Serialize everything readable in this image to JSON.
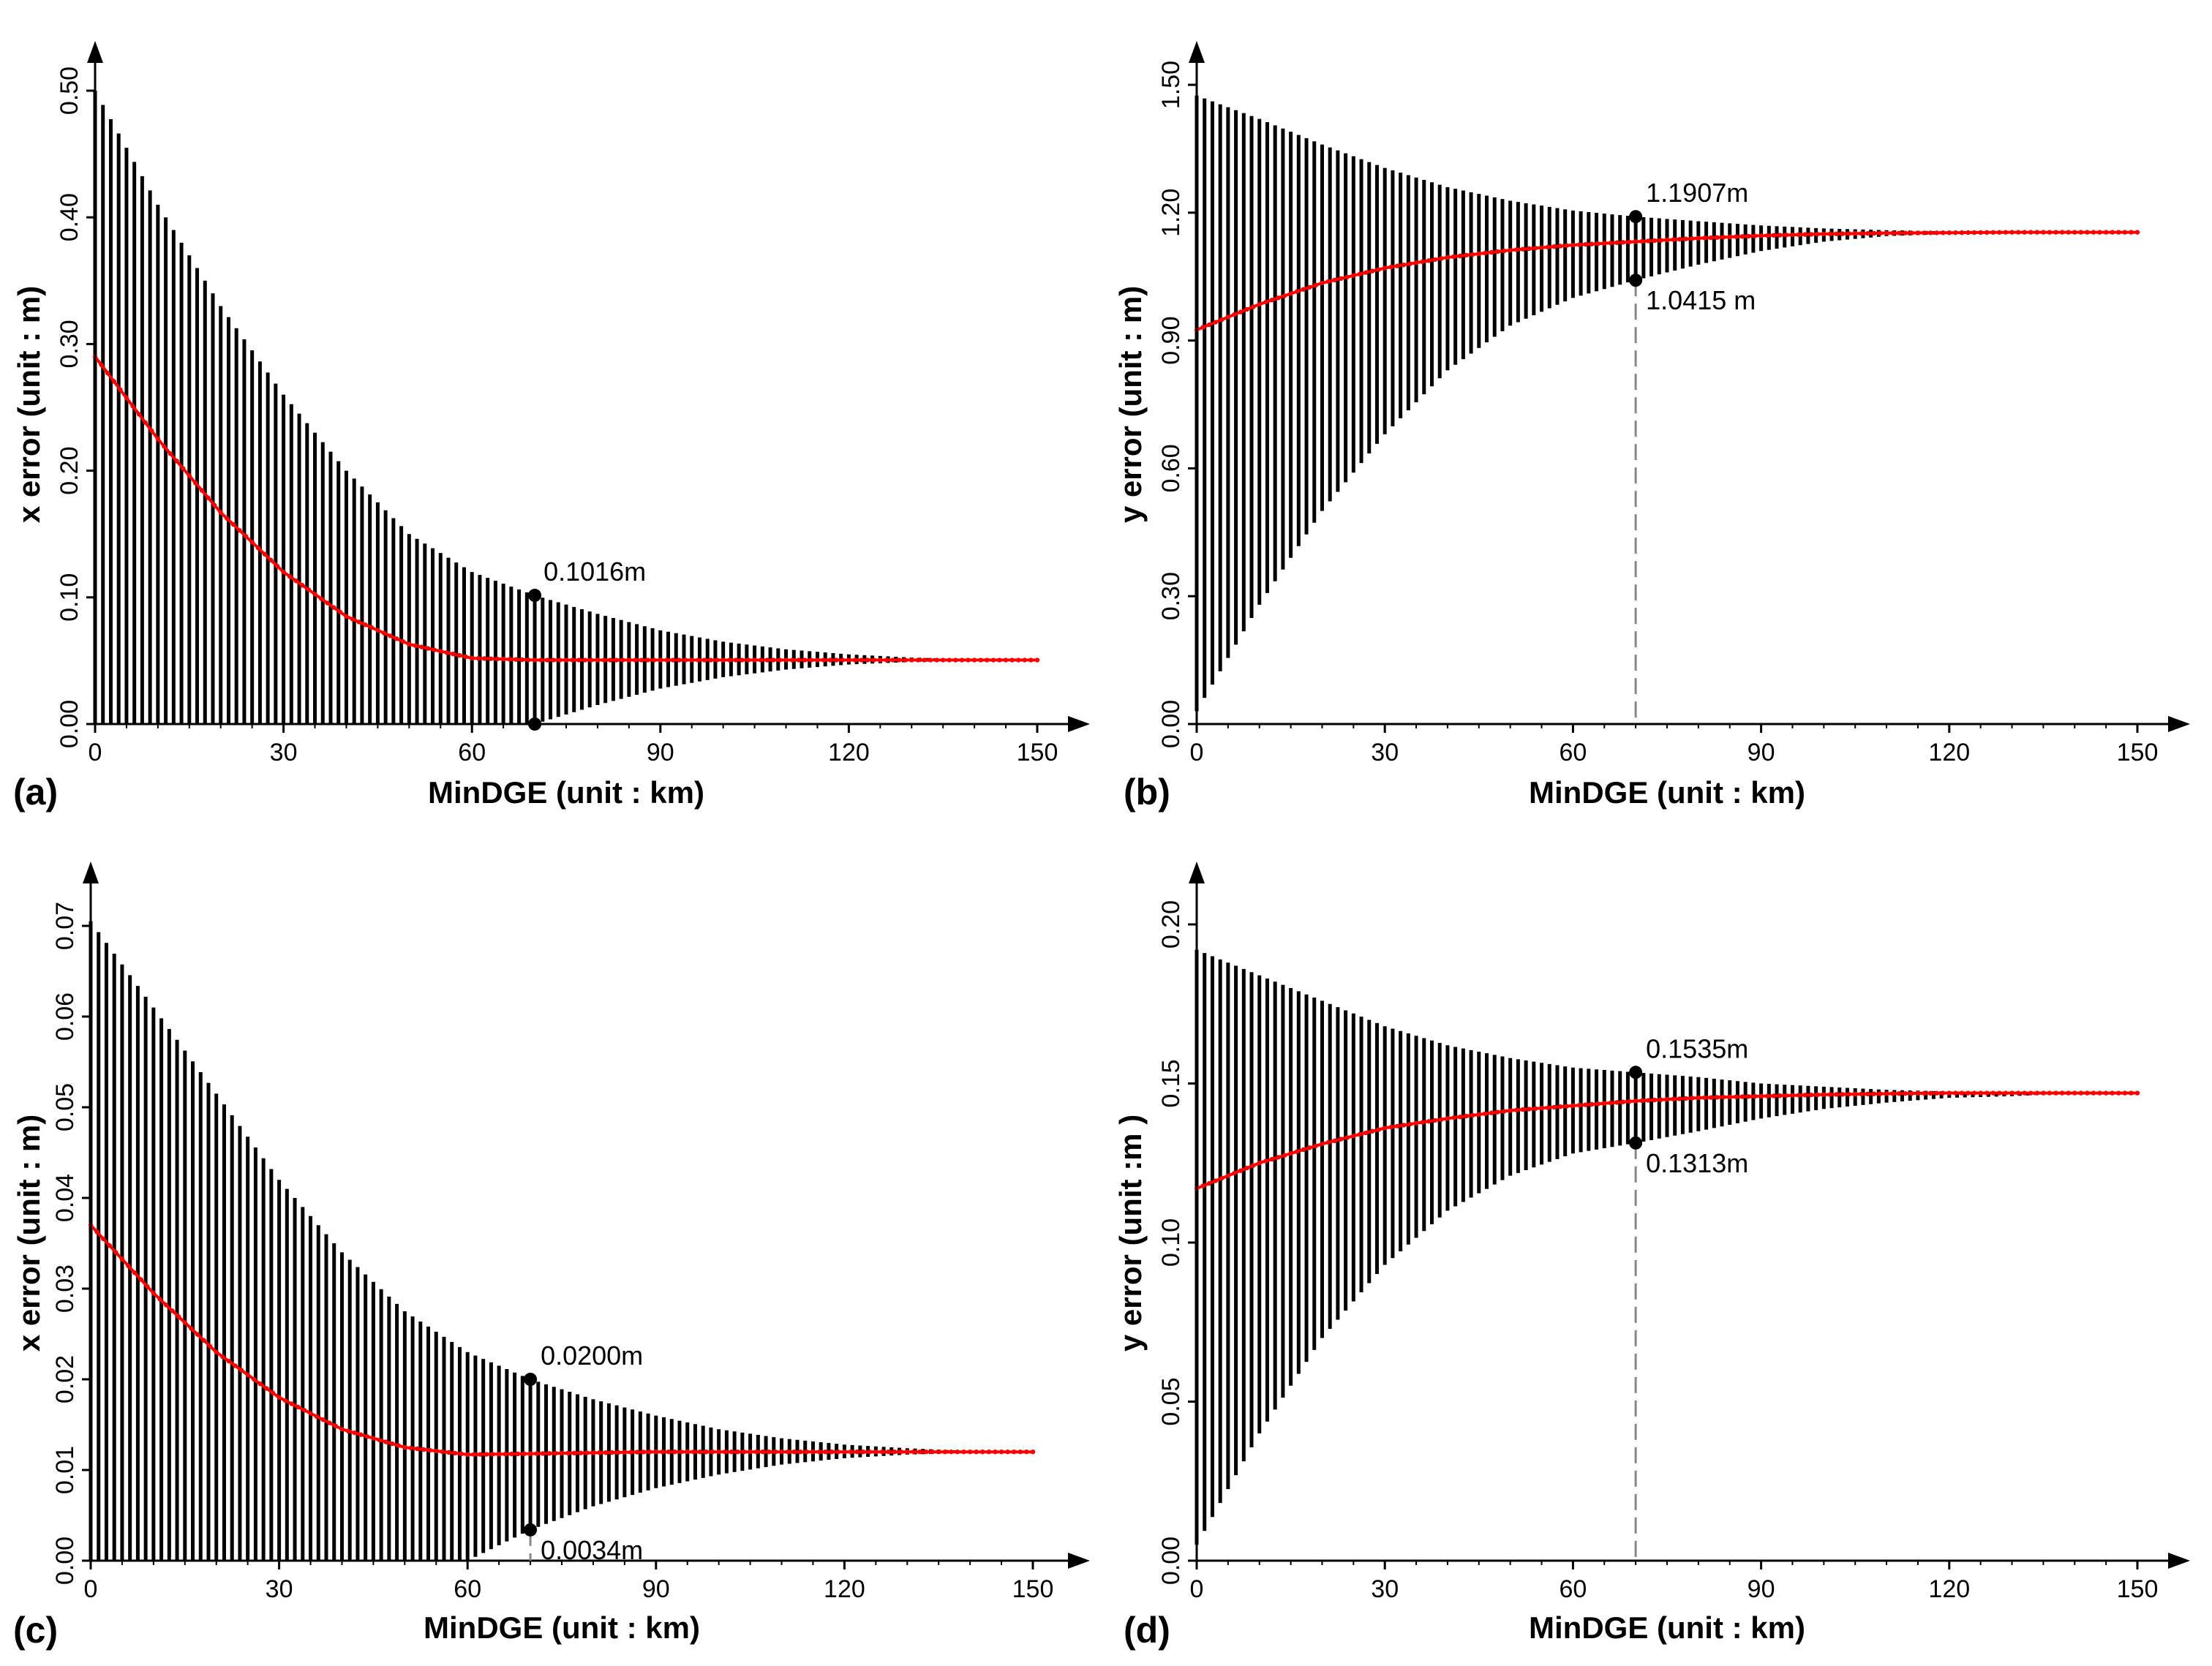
{
  "chart_data": [
    {
      "panel": "(a)",
      "type": "errorbar-line",
      "xlabel": "MinDGE (unit : km)",
      "ylabel": "x error (unit : m)",
      "xlim": [
        0,
        150
      ],
      "ylim": [
        0,
        0.52
      ],
      "xticks": [
        "0",
        "30",
        "60",
        "90",
        "120",
        "150"
      ],
      "yticks": [
        "0.00",
        "0.10",
        "0.20",
        "0.30",
        "0.40",
        "0.50"
      ],
      "series": [
        {
          "name": "mean",
          "color": "#ff0000",
          "x": [
            0,
            10,
            20,
            30,
            40,
            50,
            60,
            70,
            80,
            90,
            100,
            110,
            120,
            130,
            140,
            150
          ],
          "values": [
            0.29,
            0.225,
            0.167,
            0.12,
            0.085,
            0.063,
            0.052,
            0.0505,
            0.0505,
            0.0505,
            0.0505,
            0.0505,
            0.0505,
            0.0505,
            0.0505,
            0.0505
          ]
        },
        {
          "name": "upper",
          "color": "#000000",
          "x": [
            0,
            10,
            20,
            30,
            40,
            50,
            60,
            70,
            80,
            90,
            100,
            110,
            120,
            130,
            140,
            150
          ],
          "values": [
            0.5,
            0.41,
            0.33,
            0.26,
            0.2,
            0.15,
            0.12,
            0.1016,
            0.087,
            0.074,
            0.065,
            0.059,
            0.055,
            0.0525,
            0.051,
            0.0505
          ]
        },
        {
          "name": "lower",
          "color": "#000000",
          "x": [
            0,
            10,
            20,
            30,
            40,
            50,
            60,
            70,
            80,
            90,
            100,
            110,
            120,
            130,
            140,
            150
          ],
          "values": [
            0.0,
            0.0,
            0.0,
            0.0,
            0.0,
            0.0,
            0.0,
            0.0,
            0.015,
            0.028,
            0.037,
            0.043,
            0.047,
            0.049,
            0.05,
            0.0505
          ]
        }
      ],
      "annotations": [
        {
          "x": 70,
          "y": 0.1016,
          "text": "0.1016m"
        }
      ],
      "marker_points": [
        {
          "x": 70,
          "y": 0.1016
        },
        {
          "x": 70,
          "y": 0.0
        }
      ]
    },
    {
      "panel": "(b)",
      "type": "errorbar-line",
      "xlabel": "MinDGE (unit : km)",
      "ylabel": "y error (unit : m)",
      "xlim": [
        0,
        150
      ],
      "ylim": [
        0,
        1.58
      ],
      "xticks": [
        "0",
        "30",
        "60",
        "90",
        "120",
        "150"
      ],
      "yticks": [
        "0.00",
        "0.30",
        "0.60",
        "0.90",
        "1.20",
        "1.50"
      ],
      "series": [
        {
          "name": "mean",
          "color": "#ff0000",
          "x": [
            0,
            10,
            20,
            30,
            40,
            50,
            60,
            70,
            80,
            90,
            100,
            110,
            120,
            130,
            140,
            150
          ],
          "values": [
            0.925,
            0.985,
            1.035,
            1.07,
            1.095,
            1.112,
            1.124,
            1.132,
            1.14,
            1.146,
            1.15,
            1.152,
            1.153,
            1.154,
            1.154,
            1.154
          ]
        },
        {
          "name": "upper",
          "color": "#000000",
          "x": [
            0,
            10,
            20,
            30,
            40,
            50,
            60,
            70,
            80,
            90,
            100,
            110,
            120,
            130,
            140,
            150
          ],
          "values": [
            1.475,
            1.42,
            1.36,
            1.305,
            1.26,
            1.228,
            1.205,
            1.1907,
            1.18,
            1.17,
            1.163,
            1.159,
            1.156,
            1.155,
            1.154,
            1.154
          ]
        },
        {
          "name": "lower",
          "color": "#000000",
          "x": [
            0,
            10,
            20,
            30,
            40,
            50,
            60,
            70,
            80,
            90,
            100,
            110,
            120,
            130,
            140,
            150
          ],
          "values": [
            0.03,
            0.28,
            0.5,
            0.68,
            0.83,
            0.935,
            1.0,
            1.0415,
            1.078,
            1.11,
            1.132,
            1.145,
            1.15,
            1.153,
            1.154,
            1.154
          ]
        }
      ],
      "annotations": [
        {
          "x": 70,
          "y": 1.1907,
          "text": "1.1907m"
        },
        {
          "x": 70,
          "y": 1.0415,
          "text": "1.0415 m"
        }
      ],
      "marker_points": [
        {
          "x": 70,
          "y": 1.1907
        },
        {
          "x": 70,
          "y": 1.0415
        }
      ]
    },
    {
      "panel": "(c)",
      "type": "errorbar-line",
      "xlabel": "MinDGE (unit : km)",
      "ylabel": "x error (unit : m)",
      "xlim": [
        0,
        150
      ],
      "ylim": [
        0,
        0.075
      ],
      "xticks": [
        "0",
        "30",
        "60",
        "90",
        "120",
        "150"
      ],
      "yticks": [
        "0.00",
        "0.01",
        "0.02",
        "0.03",
        "0.04",
        "0.05",
        "0.06",
        "0.07"
      ],
      "series": [
        {
          "name": "mean",
          "color": "#ff0000",
          "x": [
            0,
            10,
            20,
            30,
            40,
            50,
            60,
            70,
            80,
            90,
            100,
            110,
            120,
            130,
            140,
            150
          ],
          "values": [
            0.037,
            0.0295,
            0.023,
            0.018,
            0.0145,
            0.0125,
            0.0117,
            0.0118,
            0.0119,
            0.012,
            0.012,
            0.012,
            0.012,
            0.012,
            0.012,
            0.012
          ]
        },
        {
          "name": "upper",
          "color": "#000000",
          "x": [
            0,
            10,
            20,
            30,
            40,
            50,
            60,
            70,
            80,
            90,
            100,
            110,
            120,
            130,
            140,
            150
          ],
          "values": [
            0.0705,
            0.061,
            0.0515,
            0.042,
            0.034,
            0.0275,
            0.023,
            0.02,
            0.0178,
            0.016,
            0.0145,
            0.0135,
            0.0128,
            0.0124,
            0.0121,
            0.012
          ]
        },
        {
          "name": "lower",
          "color": "#000000",
          "x": [
            0,
            10,
            20,
            30,
            40,
            50,
            60,
            70,
            80,
            90,
            100,
            110,
            120,
            130,
            140,
            150
          ],
          "values": [
            0.0,
            0.0,
            0.0,
            0.0,
            0.0,
            0.0,
            0.0,
            0.0034,
            0.006,
            0.008,
            0.0095,
            0.0106,
            0.0113,
            0.0117,
            0.0119,
            0.012
          ]
        }
      ],
      "annotations": [
        {
          "x": 70,
          "y": 0.02,
          "text": "0.0200m"
        },
        {
          "x": 70,
          "y": 0.0034,
          "text": "0.0034m"
        }
      ],
      "marker_points": [
        {
          "x": 70,
          "y": 0.02
        },
        {
          "x": 70,
          "y": 0.0034
        }
      ]
    },
    {
      "panel": "(d)",
      "type": "errorbar-line",
      "xlabel": "MinDGE (unit : km)",
      "ylabel": "y error (unit :m )",
      "xlim": [
        0,
        150
      ],
      "ylim": [
        0,
        0.215
      ],
      "xticks": [
        "0",
        "30",
        "60",
        "90",
        "120",
        "150"
      ],
      "yticks": [
        "0.00",
        "0.05",
        "0.10",
        "0.15",
        "0.20"
      ],
      "series": [
        {
          "name": "mean",
          "color": "#ff0000",
          "x": [
            0,
            10,
            20,
            30,
            40,
            50,
            60,
            70,
            80,
            90,
            100,
            110,
            120,
            130,
            140,
            150
          ],
          "values": [
            0.117,
            0.125,
            0.131,
            0.136,
            0.139,
            0.1415,
            0.143,
            0.1445,
            0.1455,
            0.146,
            0.1465,
            0.1468,
            0.147,
            0.147,
            0.147,
            0.147
          ]
        },
        {
          "name": "upper",
          "color": "#000000",
          "x": [
            0,
            10,
            20,
            30,
            40,
            50,
            60,
            70,
            80,
            90,
            100,
            110,
            120,
            130,
            140,
            150
          ],
          "values": [
            0.192,
            0.184,
            0.176,
            0.168,
            0.162,
            0.158,
            0.155,
            0.1535,
            0.152,
            0.15,
            0.149,
            0.148,
            0.1475,
            0.147,
            0.147,
            0.147
          ]
        },
        {
          "name": "lower",
          "color": "#000000",
          "x": [
            0,
            10,
            20,
            30,
            40,
            50,
            60,
            70,
            80,
            90,
            100,
            110,
            120,
            130,
            140,
            150
          ],
          "values": [
            0.005,
            0.04,
            0.07,
            0.093,
            0.11,
            0.121,
            0.128,
            0.1313,
            0.135,
            0.139,
            0.142,
            0.144,
            0.1455,
            0.146,
            0.147,
            0.147
          ]
        }
      ],
      "annotations": [
        {
          "x": 70,
          "y": 0.1535,
          "text": "0.1535m"
        },
        {
          "x": 70,
          "y": 0.1313,
          "text": "0.1313m"
        }
      ],
      "marker_points": [
        {
          "x": 70,
          "y": 0.1535
        },
        {
          "x": 70,
          "y": 0.1313
        }
      ]
    }
  ]
}
